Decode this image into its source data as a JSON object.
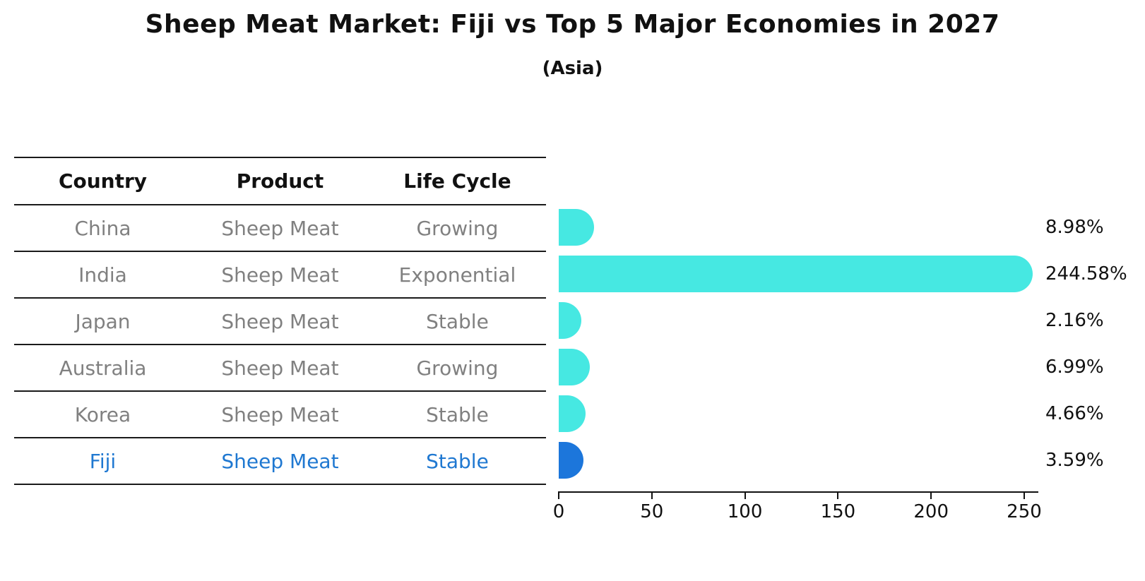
{
  "title": "Sheep Meat Market: Fiji vs Top 5 Major Economies in 2027",
  "subtitle": "(Asia)",
  "colors": {
    "bar_default": "#46e8e2",
    "bar_highlight": "#1c76db",
    "highlight_text": "#1f78d1",
    "row_text": "#808080",
    "header_text": "#111111"
  },
  "table": {
    "headers": [
      "Country",
      "Product",
      "Life Cycle"
    ],
    "rows": [
      {
        "country": "China",
        "product": "Sheep Meat",
        "life_cycle": "Growing",
        "highlight": false
      },
      {
        "country": "India",
        "product": "Sheep Meat",
        "life_cycle": "Exponential",
        "highlight": false
      },
      {
        "country": "Japan",
        "product": "Sheep Meat",
        "life_cycle": "Stable",
        "highlight": false
      },
      {
        "country": "Australia",
        "product": "Sheep Meat",
        "life_cycle": "Growing",
        "highlight": false
      },
      {
        "country": "Korea",
        "product": "Sheep Meat",
        "life_cycle": "Stable",
        "highlight": false
      },
      {
        "country": "Fiji",
        "product": "Sheep Meat",
        "life_cycle": "Stable",
        "highlight": true
      }
    ]
  },
  "chart_data": {
    "type": "bar",
    "orientation": "horizontal",
    "title": "Sheep Meat Market: Fiji vs Top 5 Major Economies in 2027",
    "subtitle": "(Asia)",
    "categories": [
      "China",
      "India",
      "Japan",
      "Australia",
      "Korea",
      "Fiji"
    ],
    "values": [
      8.98,
      244.58,
      2.16,
      6.99,
      4.66,
      3.59
    ],
    "value_labels": [
      "8.98%",
      "244.58%",
      "2.16%",
      "6.99%",
      "4.66%",
      "3.59%"
    ],
    "highlight_index": 5,
    "xlabel": "",
    "ylabel": "",
    "xlim": [
      0,
      250
    ],
    "xticks": [
      0,
      50,
      100,
      150,
      200,
      250
    ],
    "xtick_labels": [
      "0",
      "50",
      "100",
      "150",
      "200",
      "250"
    ],
    "grid": false,
    "legend": false
  }
}
